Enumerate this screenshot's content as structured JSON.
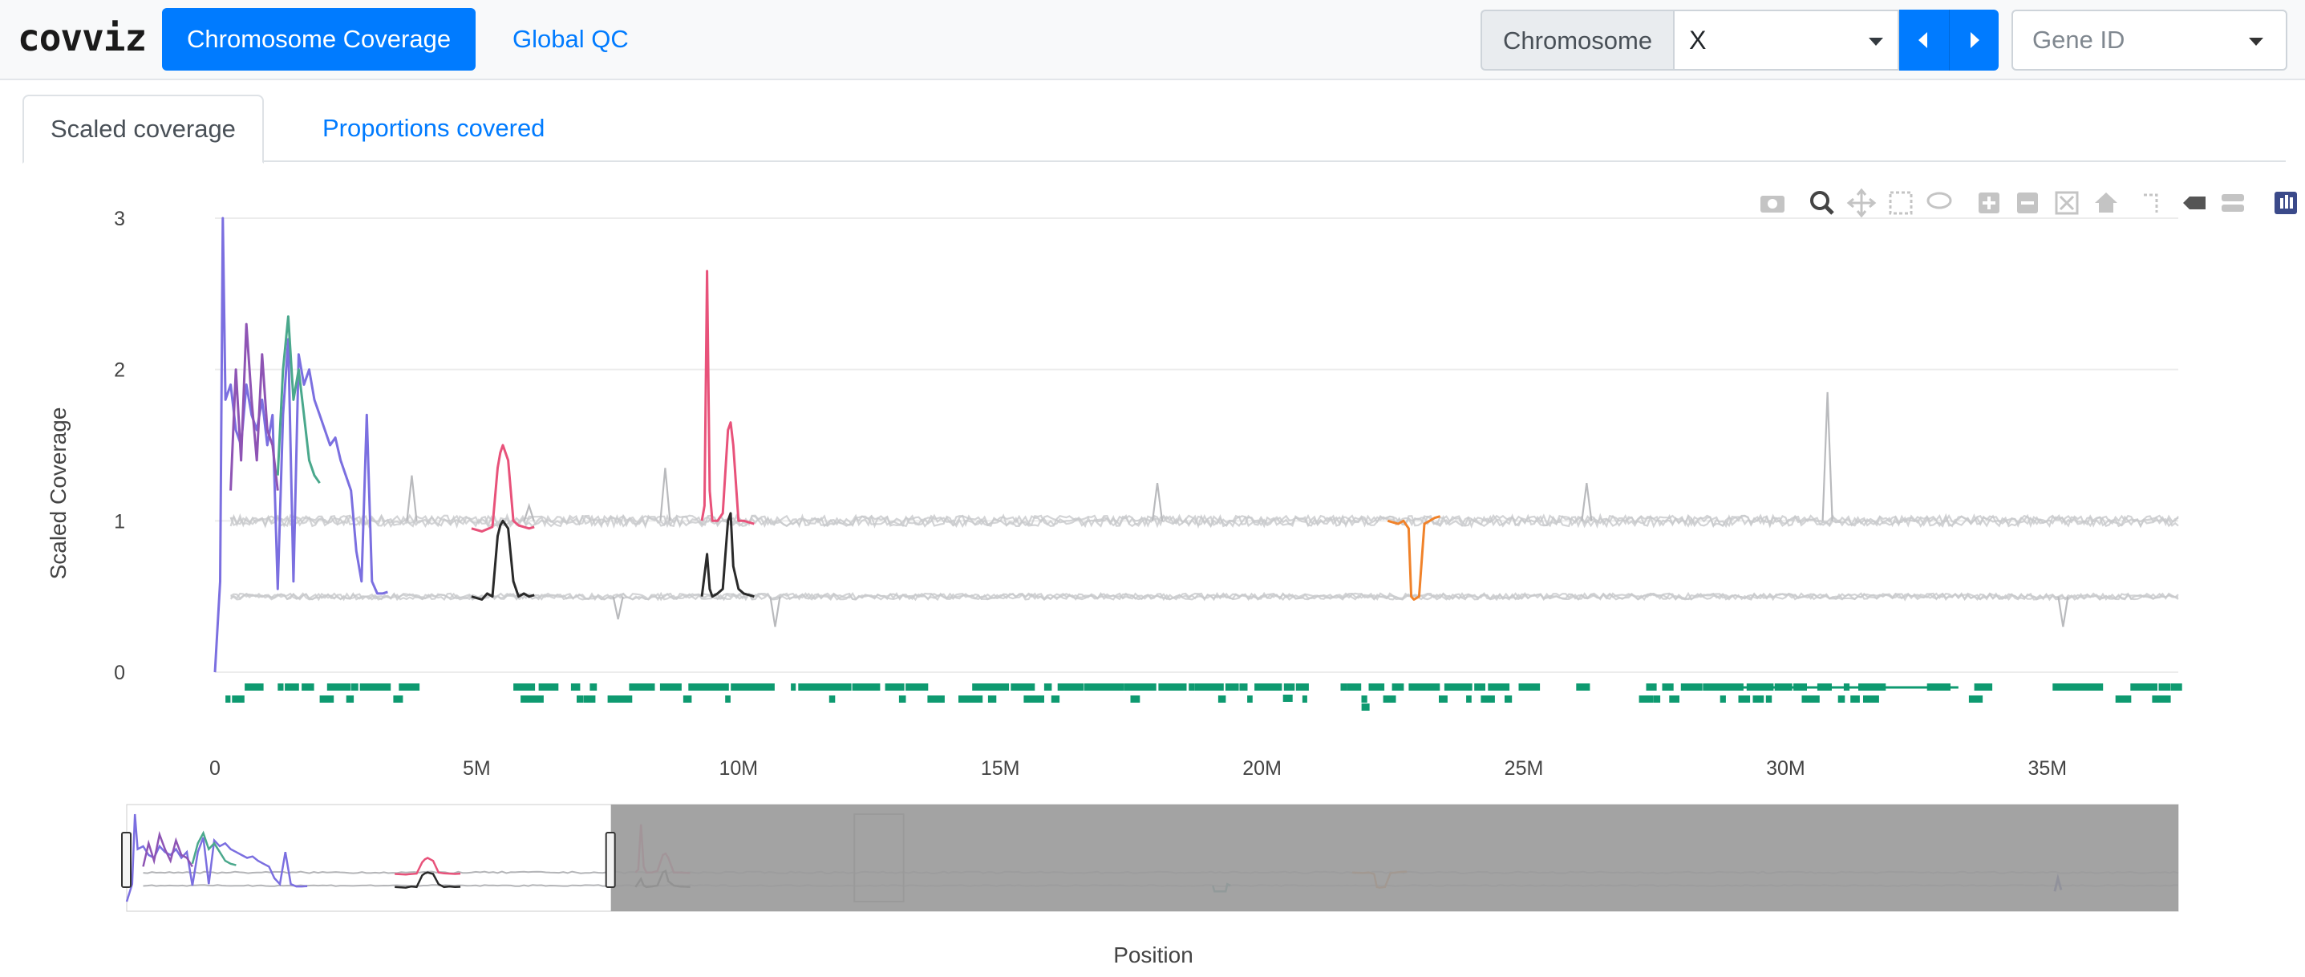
{
  "app": {
    "brand": "covviz",
    "nav": {
      "active_label": "Chromosome Coverage",
      "link_label": "Global QC"
    },
    "chromosome": {
      "label": "Chromosome",
      "value": "X"
    },
    "gene": {
      "placeholder": "Gene ID"
    }
  },
  "tabs": {
    "active_label": "Scaled coverage",
    "link_label": "Proportions covered"
  },
  "toolbar": {
    "icons": [
      "camera-icon",
      "zoom-icon",
      "pan-icon",
      "box-select-icon",
      "lasso-icon",
      "zoom-in-icon",
      "zoom-out-icon",
      "autoscale-icon",
      "reset-axes-icon",
      "spike-lines-icon",
      "hover-closest-icon",
      "hover-compare-icon",
      "plotly-logo-icon"
    ],
    "active_icon": "zoom-icon"
  },
  "chart_data": {
    "type": "line",
    "xlabel": "Position",
    "ylabel": "Scaled Coverage",
    "xlim": [
      0,
      37500000
    ],
    "ylim": [
      0,
      3
    ],
    "x_ticks": [
      {
        "v": 0,
        "label": "0"
      },
      {
        "v": 5000000,
        "label": "5M"
      },
      {
        "v": 10000000,
        "label": "10M"
      },
      {
        "v": 15000000,
        "label": "15M"
      },
      {
        "v": 20000000,
        "label": "20M"
      },
      {
        "v": 25000000,
        "label": "25M"
      },
      {
        "v": 30000000,
        "label": "30M"
      },
      {
        "v": 35000000,
        "label": "35M"
      }
    ],
    "y_ticks": [
      {
        "v": 0,
        "label": "0"
      },
      {
        "v": 1,
        "label": "1"
      },
      {
        "v": 2,
        "label": "2"
      },
      {
        "v": 3,
        "label": "3"
      }
    ],
    "grid": true,
    "colors": {
      "background_band": "#c8c9cc",
      "purple": "#7b6fe0",
      "violet": "#8e54b4",
      "green": "#4aa88c",
      "pink": "#e8527a",
      "black": "#2a2a2a",
      "orange": "#f0822a",
      "genes": "#0e9a70",
      "rangeslider_mask": "#9b9b9b"
    },
    "baseline_bands": [
      {
        "name": "",
        "level": 1.0,
        "noise": 0.035
      },
      {
        "name": "",
        "level": 0.5,
        "noise": 0.02
      }
    ],
    "highlighted_series": [
      {
        "color": "purple",
        "x": [
          0,
          100000,
          150000,
          200000,
          300000,
          400000,
          500000,
          600000,
          700000,
          800000,
          900000,
          1000000,
          1100000,
          1200000,
          1300000,
          1400000,
          1500000,
          1600000,
          1700000,
          1800000,
          1900000,
          2000000,
          2100000,
          2200000,
          2300000,
          2400000,
          2500000,
          2600000,
          2700000,
          2800000,
          2900000,
          3000000,
          3100000,
          3200000,
          3300000
        ],
        "y": [
          0.0,
          0.6,
          3.0,
          1.8,
          1.9,
          1.6,
          1.5,
          1.9,
          1.7,
          1.6,
          1.8,
          1.5,
          1.7,
          0.55,
          1.7,
          2.2,
          0.6,
          2.1,
          1.9,
          2.0,
          1.8,
          1.7,
          1.6,
          1.5,
          1.55,
          1.4,
          1.3,
          1.2,
          0.8,
          0.6,
          1.7,
          0.6,
          0.52,
          0.52,
          0.53
        ]
      },
      {
        "color": "violet",
        "x": [
          300000,
          400000,
          500000,
          600000,
          700000,
          800000,
          900000,
          1000000,
          1100000,
          1200000
        ],
        "y": [
          1.2,
          2.0,
          1.4,
          2.3,
          1.8,
          1.4,
          2.1,
          1.6,
          1.5,
          1.2
        ]
      },
      {
        "color": "green",
        "x": [
          1200000,
          1300000,
          1400000,
          1500000,
          1600000,
          1700000,
          1800000,
          1900000,
          2000000
        ],
        "y": [
          1.3,
          2.0,
          2.35,
          1.8,
          2.0,
          1.7,
          1.4,
          1.3,
          1.25
        ]
      },
      {
        "color": "pink",
        "x": [
          4900000,
          5100000,
          5300000,
          5400000,
          5450000,
          5500000,
          5600000,
          5700000,
          5800000,
          5900000,
          6000000,
          6100000
        ],
        "y": [
          0.95,
          0.93,
          0.96,
          1.35,
          1.45,
          1.5,
          1.4,
          1.0,
          0.97,
          0.96,
          0.95,
          0.96
        ]
      },
      {
        "color": "black",
        "x": [
          4900000,
          5100000,
          5200000,
          5300000,
          5400000,
          5450000,
          5500000,
          5600000,
          5700000,
          5800000,
          5900000,
          6000000,
          6100000
        ],
        "y": [
          0.5,
          0.48,
          0.52,
          0.5,
          0.9,
          0.97,
          1.0,
          0.95,
          0.6,
          0.5,
          0.52,
          0.5,
          0.51
        ]
      },
      {
        "color": "pink",
        "x": [
          9300000,
          9350000,
          9400000,
          9450000,
          9500000,
          9600000,
          9700000,
          9800000,
          9850000,
          9900000,
          10000000,
          10100000,
          10300000
        ],
        "y": [
          1.0,
          1.1,
          2.65,
          1.2,
          1.0,
          1.0,
          1.05,
          1.6,
          1.65,
          1.5,
          1.0,
          1.0,
          0.98
        ]
      },
      {
        "color": "black",
        "x": [
          9300000,
          9400000,
          9450000,
          9500000,
          9600000,
          9700000,
          9800000,
          9850000,
          9900000,
          10000000,
          10100000,
          10300000
        ],
        "y": [
          0.5,
          0.78,
          0.55,
          0.5,
          0.52,
          0.55,
          1.0,
          1.05,
          0.7,
          0.55,
          0.52,
          0.5
        ]
      },
      {
        "color": "orange",
        "x": [
          22400000,
          22600000,
          22700000,
          22800000,
          22850000,
          22900000,
          23000000,
          23100000,
          23200000,
          23300000,
          23400000
        ],
        "y": [
          1.0,
          0.98,
          1.0,
          0.95,
          0.5,
          0.48,
          0.5,
          0.98,
          1.0,
          1.02,
          1.03
        ]
      }
    ],
    "spikes": [
      {
        "x": 3760000,
        "top": 1.3,
        "band": "upper"
      },
      {
        "x": 6000000,
        "top": 1.1,
        "band": "upper"
      },
      {
        "x": 7700000,
        "top": 0.35,
        "band": "lower"
      },
      {
        "x": 8600000,
        "top": 1.35,
        "band": "upper"
      },
      {
        "x": 10700000,
        "top": 0.3,
        "band": "lower"
      },
      {
        "x": 18000000,
        "top": 1.25,
        "band": "upper"
      },
      {
        "x": 26200000,
        "top": 1.25,
        "band": "upper"
      },
      {
        "x": 30800000,
        "top": 1.85,
        "band": "upper"
      },
      {
        "x": 35300000,
        "top": 0.3,
        "band": "lower"
      }
    ],
    "rangeslider": {
      "view_range": [
        0,
        8850000
      ],
      "extra_series": [
        {
          "color": "teal",
          "x": 20000000,
          "y": 0.5
        },
        {
          "color": "navy",
          "x": 35300000,
          "y": 0.8
        }
      ]
    }
  }
}
